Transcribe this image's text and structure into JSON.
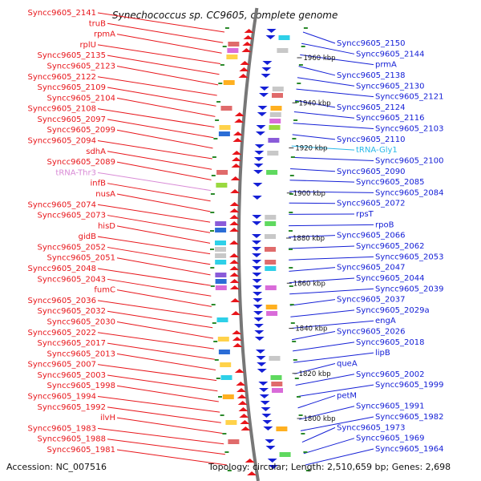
{
  "title": "Synechococcus sp. CC9605, complete genome",
  "accession": "Accession: NC_007516",
  "topology": "Topology: circular; Length: 2,510,659 bp; Genes: 2,698",
  "colors": {
    "forward": "#e8161b",
    "reverse": "#1520d6",
    "trna": "#d98ad6",
    "trna_rev": "#29b8e8",
    "backbone": "#777777",
    "tick": "#2b8a2b"
  },
  "kbp_ticks": [
    "1960 kbp",
    "1940 kbp",
    "1920 kbp",
    "1900 kbp",
    "1880 kbp",
    "1860 kbp",
    "1840 kbp",
    "1820 kbp",
    "1800 kbp"
  ],
  "left_labels": [
    "Syncc9605_2141",
    "truB",
    "rpmA",
    "rplU",
    "Syncc9605_2135",
    "Syncc9605_2123",
    "Syncc9605_2122",
    "Syncc9605_2109",
    "Syncc9605_2104",
    "Syncc9605_2108",
    "Syncc9605_2097",
    "Syncc9605_2099",
    "Syncc9605_2094",
    "sdhA",
    "Syncc9605_2089",
    "tRNA-Thr3",
    "infB",
    "nusA",
    "Syncc9605_2074",
    "Syncc9605_2073",
    "hisD",
    "gidB",
    "Syncc9605_2052",
    "Syncc9605_2051",
    "Syncc9605_2048",
    "Syncc9605_2043",
    "fumC",
    "Syncc9605_2036",
    "Syncc9605_2032",
    "Syncc9605_2030",
    "Syncc9605_2022",
    "Syncc9605_2017",
    "Syncc9605_2013",
    "Syncc9605_2007",
    "Syncc9605_2003",
    "Syncc9605_1998",
    "Syncc9605_1994",
    "Syncc9605_1992",
    "ilvH",
    "Syncc9605_1983",
    "Syncc9605_1988",
    "Syncc9605_1981"
  ],
  "right_labels": [
    "Syncc9605_2150",
    "Syncc9605_2144",
    "prmA",
    "Syncc9605_2138",
    "Syncc9605_2130",
    "Syncc9605_2121",
    "Syncc9605_2124",
    "Syncc9605_2116",
    "Syncc9605_2103",
    "Syncc9605_2110",
    "tRNA-Gly1",
    "Syncc9605_2100",
    "Syncc9605_2090",
    "Syncc9605_2085",
    "Syncc9605_2084",
    "Syncc9605_2072",
    "rpsT",
    "rpoB",
    "Syncc9605_2066",
    "Syncc9605_2062",
    "Syncc9605_2053",
    "Syncc9605_2047",
    "Syncc9605_2044",
    "Syncc9605_2039",
    "Syncc9605_2037",
    "Syncc9605_2029a",
    "engA",
    "Syncc9605_2026",
    "Syncc9605_2018",
    "lipB",
    "queA",
    "Syncc9605_2002",
    "Syncc9605_1999",
    "petM",
    "Syncc9605_1991",
    "Syncc9605_1982",
    "Syncc9605_1973",
    "Syncc9605_1969",
    "Syncc9605_1964"
  ]
}
